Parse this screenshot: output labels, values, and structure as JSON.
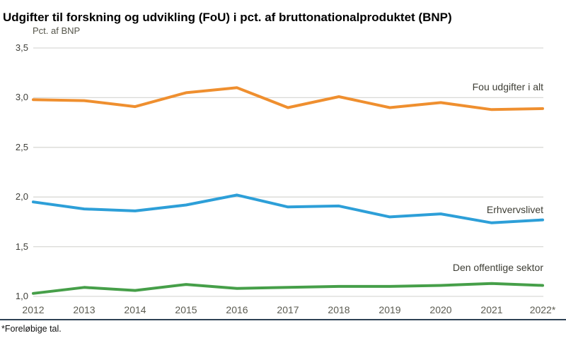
{
  "header": {
    "title": "Udgifter til forskning og udvikling (FoU) i pct. af bruttonationalproduktet (BNP)"
  },
  "footer": {
    "note": "*Foreløbige tal."
  },
  "chart_data": {
    "type": "line",
    "title": "Udgifter til forskning og udvikling (FoU) i pct. af bruttonationalproduktet (BNP)",
    "ylabel": "Pct. af BNP",
    "xlabel": "",
    "categories": [
      "2012",
      "2013",
      "2014",
      "2015",
      "2016",
      "2017",
      "2018",
      "2019",
      "2020",
      "2021",
      "2022*"
    ],
    "series": [
      {
        "name": "Fou udgifter i alt",
        "color": "#EF8F2F",
        "values": [
          2.98,
          2.97,
          2.91,
          3.05,
          3.1,
          2.9,
          3.01,
          2.9,
          2.95,
          2.88,
          2.89
        ]
      },
      {
        "name": "Erhvervslivet",
        "color": "#2D9FD8",
        "values": [
          1.95,
          1.88,
          1.86,
          1.92,
          2.02,
          1.9,
          1.91,
          1.8,
          1.83,
          1.74,
          1.77
        ]
      },
      {
        "name": "Den offentlige sektor",
        "color": "#469F49",
        "values": [
          1.03,
          1.09,
          1.06,
          1.12,
          1.08,
          1.09,
          1.1,
          1.1,
          1.11,
          1.13,
          1.11
        ]
      }
    ],
    "ylim": [
      1.0,
      3.5
    ],
    "ytick_step": 0.5,
    "ytick_labels": [
      "1,0",
      "1,5",
      "2,0",
      "2,5",
      "3,0",
      "3,5"
    ],
    "grid": true,
    "legend_position": "inline-right",
    "note": "*Foreløbige tal."
  },
  "colors": {
    "grid": "#d9d9d6",
    "bottom_rule": "#2e4154",
    "accent_orange": "#EF8F2F",
    "accent_blue": "#2D9FD8",
    "accent_green": "#469F49"
  }
}
